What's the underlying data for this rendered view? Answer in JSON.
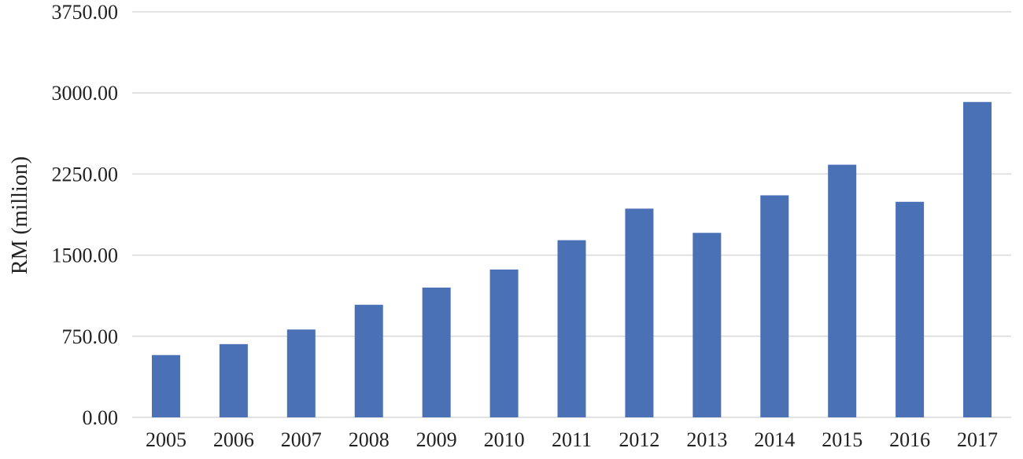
{
  "chart_data": {
    "type": "bar",
    "title": "",
    "xlabel": "",
    "ylabel": "RM (million)",
    "categories": [
      "2005",
      "2006",
      "2007",
      "2008",
      "2009",
      "2010",
      "2011",
      "2012",
      "2013",
      "2014",
      "2015",
      "2016",
      "2017"
    ],
    "values": [
      576,
      677,
      812,
      1041,
      1200,
      1367,
      1638,
      1930,
      1706,
      2053,
      2336,
      1993,
      2916
    ],
    "ylim": [
      0,
      3750
    ],
    "yticks": [
      "0.00",
      "750.00",
      "1500.00",
      "2250.00",
      "3000.00",
      "3750.00"
    ],
    "grid": true,
    "legend": "none",
    "colors": {
      "bar": "#4a71b6",
      "grid": "#d9d9d9",
      "text": "#222222"
    }
  }
}
